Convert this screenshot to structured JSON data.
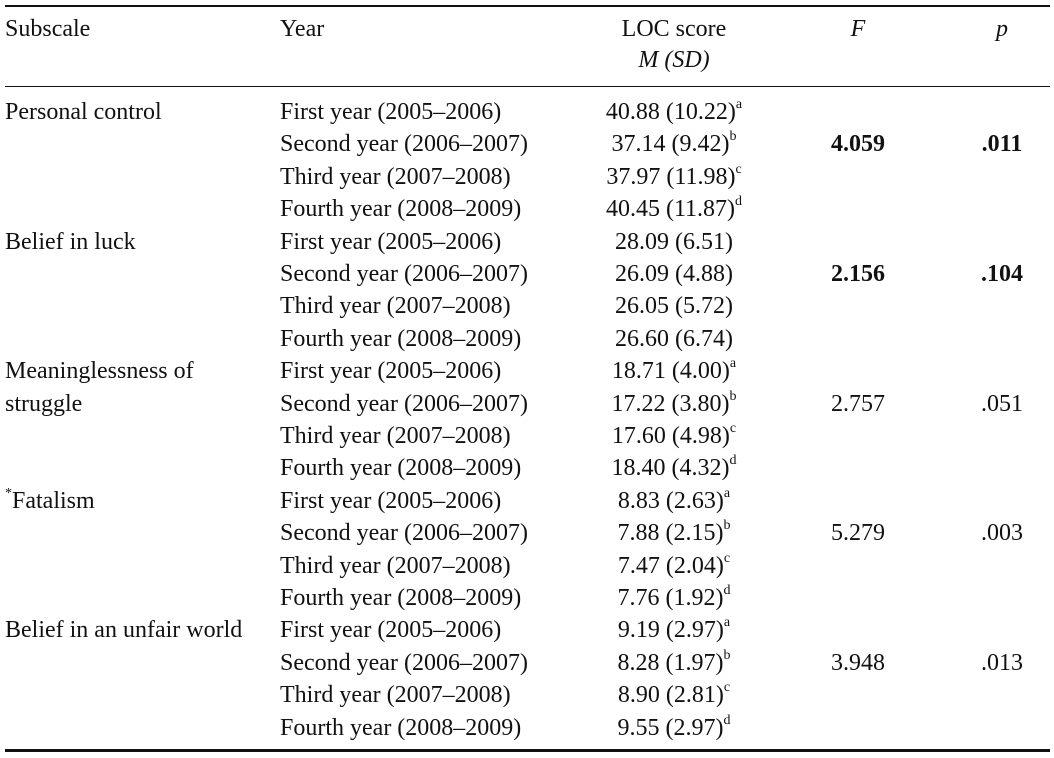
{
  "table": {
    "headers": {
      "subscale": "Subscale",
      "year": "Year",
      "loc_score": "LOC score",
      "m": "M",
      "sd": "(SD)",
      "f": "F",
      "p": "p"
    },
    "groups": [
      {
        "subscale_lines": [
          "Personal control"
        ],
        "subscale_mark": "",
        "f": "4.059",
        "p": ".011",
        "bold": true,
        "rows": [
          {
            "year": "First year (2005–2006)",
            "score": "40.88 (10.22)",
            "sup": "a"
          },
          {
            "year": "Second year (2006–2007)",
            "score": "37.14 (9.42)",
            "sup": "b"
          },
          {
            "year": "Third year (2007–2008)",
            "score": "37.97 (11.98)",
            "sup": "c"
          },
          {
            "year": "Fourth year (2008–2009)",
            "score": "40.45 (11.87)",
            "sup": "d"
          }
        ]
      },
      {
        "subscale_lines": [
          "Belief in luck"
        ],
        "subscale_mark": "",
        "f": "2.156",
        "p": ".104",
        "bold": true,
        "rows": [
          {
            "year": "First year (2005–2006)",
            "score": "28.09 (6.51)",
            "sup": ""
          },
          {
            "year": "Second year (2006–2007)",
            "score": "26.09 (4.88)",
            "sup": ""
          },
          {
            "year": "Third year (2007–2008)",
            "score": "26.05 (5.72)",
            "sup": ""
          },
          {
            "year": "Fourth year (2008–2009)",
            "score": "26.60 (6.74)",
            "sup": ""
          }
        ]
      },
      {
        "subscale_lines": [
          "Meaninglessness of",
          "struggle"
        ],
        "subscale_mark": "",
        "f": "2.757",
        "p": ".051",
        "bold": false,
        "rows": [
          {
            "year": "First year (2005–2006)",
            "score": "18.71 (4.00)",
            "sup": "a"
          },
          {
            "year": "Second year (2006–2007)",
            "score": "17.22 (3.80)",
            "sup": "b"
          },
          {
            "year": "Third year (2007–2008)",
            "score": "17.60 (4.98)",
            "sup": "c"
          },
          {
            "year": "Fourth year (2008–2009)",
            "score": "18.40 (4.32)",
            "sup": "d"
          }
        ]
      },
      {
        "subscale_lines": [
          "Fatalism"
        ],
        "subscale_mark": "*",
        "f": "5.279",
        "p": ".003",
        "bold": false,
        "rows": [
          {
            "year": "First year (2005–2006)",
            "score": "8.83 (2.63)",
            "sup": "a"
          },
          {
            "year": "Second year (2006–2007)",
            "score": "7.88 (2.15)",
            "sup": "b"
          },
          {
            "year": "Third year (2007–2008)",
            "score": "7.47 (2.04)",
            "sup": "c"
          },
          {
            "year": "Fourth year (2008–2009)",
            "score": "7.76 (1.92)",
            "sup": "d"
          }
        ]
      },
      {
        "subscale_lines": [
          "Belief in an unfair world"
        ],
        "subscale_mark": "",
        "f": "3.948",
        "p": ".013",
        "bold": false,
        "rows": [
          {
            "year": "First year (2005–2006)",
            "score": "9.19 (2.97)",
            "sup": "a"
          },
          {
            "year": "Second year (2006–2007)",
            "score": "8.28 (1.97)",
            "sup": "b"
          },
          {
            "year": "Third year (2007–2008)",
            "score": "8.90 (2.81)",
            "sup": "c"
          },
          {
            "year": "Fourth year (2008–2009)",
            "score": "9.55 (2.97)",
            "sup": "d"
          }
        ]
      }
    ]
  }
}
